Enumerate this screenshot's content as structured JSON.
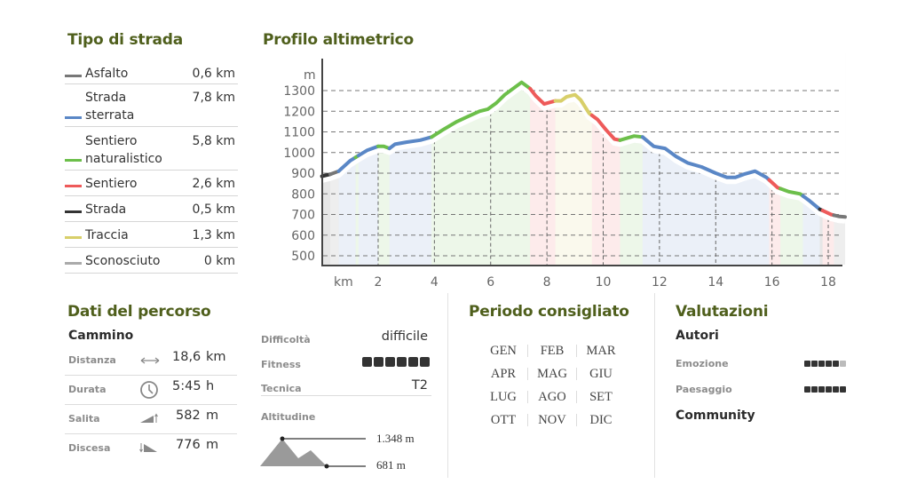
{
  "road_types": {
    "title": "Tipo di strada",
    "items": [
      {
        "label_line1": "Asfalto",
        "label_line2": "",
        "value": "0,6 km",
        "color": "#777777"
      },
      {
        "label_line1": "Strada",
        "label_line2": "sterrata",
        "value": "7,8 km",
        "color": "#5a87c6"
      },
      {
        "label_line1": "Sentiero",
        "label_line2": "naturalistico",
        "value": "5,8 km",
        "color": "#6cbf4a"
      },
      {
        "label_line1": "Sentiero",
        "label_line2": "",
        "value": "2,6 km",
        "color": "#ee5a5a"
      },
      {
        "label_line1": "Strada",
        "label_line2": "",
        "value": "0,5 km",
        "color": "#333333"
      },
      {
        "label_line1": "Traccia",
        "label_line2": "",
        "value": "1,3 km",
        "color": "#d8cf6a"
      },
      {
        "label_line1": "Sconosciuto",
        "label_line2": "",
        "value": "0 km",
        "color": "#aaaaaa"
      }
    ]
  },
  "profile": {
    "title": "Profilo altimetrico"
  },
  "chart_data": {
    "type": "area",
    "title": "Profilo altimetrico",
    "xlabel": "km",
    "ylabel": "m",
    "x_ticks": [
      2,
      4,
      6,
      8,
      10,
      12,
      14,
      16,
      18
    ],
    "y_ticks": [
      500,
      600,
      700,
      800,
      900,
      1000,
      1100,
      1200,
      1300
    ],
    "xlim": [
      0,
      18.6
    ],
    "ylim": [
      450,
      1400
    ],
    "grid": true,
    "legend_position": "left (Tipo di strada)",
    "x": [
      0.0,
      0.3,
      0.6,
      1.0,
      1.3,
      1.6,
      2.0,
      2.2,
      2.4,
      2.6,
      3.0,
      3.5,
      3.9,
      4.3,
      4.8,
      5.2,
      5.6,
      5.9,
      6.2,
      6.5,
      6.8,
      7.1,
      7.4,
      7.6,
      7.9,
      8.3,
      8.5,
      8.7,
      9.0,
      9.2,
      9.5,
      9.8,
      10.1,
      10.4,
      10.6,
      11.1,
      11.4,
      11.8,
      12.2,
      12.6,
      13.0,
      13.5,
      14.0,
      14.4,
      14.7,
      15.0,
      15.4,
      15.8,
      16.2,
      16.6,
      17.0,
      17.3,
      17.7,
      18.1,
      18.4,
      18.6
    ],
    "y": [
      885,
      895,
      910,
      960,
      985,
      1010,
      1030,
      1030,
      1020,
      1040,
      1050,
      1060,
      1075,
      1110,
      1150,
      1175,
      1200,
      1210,
      1240,
      1280,
      1310,
      1340,
      1310,
      1275,
      1235,
      1250,
      1250,
      1270,
      1280,
      1255,
      1190,
      1160,
      1110,
      1065,
      1060,
      1080,
      1075,
      1030,
      1020,
      980,
      950,
      930,
      900,
      880,
      880,
      895,
      910,
      880,
      830,
      810,
      800,
      770,
      725,
      700,
      690,
      688
    ],
    "segments": [
      {
        "type": "Strada",
        "from_km": 0.0,
        "to_km": 0.3,
        "color": "#333333"
      },
      {
        "type": "Asfalto",
        "from_km": 0.3,
        "to_km": 0.6,
        "color": "#777777"
      },
      {
        "type": "Strada sterrata",
        "from_km": 0.6,
        "to_km": 1.2,
        "color": "#5a87c6"
      },
      {
        "type": "Sentiero naturalistico",
        "from_km": 1.2,
        "to_km": 1.3,
        "color": "#6cbf4a"
      },
      {
        "type": "Strada sterrata",
        "from_km": 1.3,
        "to_km": 2.0,
        "color": "#5a87c6"
      },
      {
        "type": "Sentiero naturalistico",
        "from_km": 2.0,
        "to_km": 2.4,
        "color": "#6cbf4a"
      },
      {
        "type": "Strada sterrata",
        "from_km": 2.4,
        "to_km": 3.9,
        "color": "#5a87c6"
      },
      {
        "type": "Sentiero naturalistico",
        "from_km": 3.9,
        "to_km": 7.4,
        "color": "#6cbf4a"
      },
      {
        "type": "Sentiero",
        "from_km": 7.4,
        "to_km": 8.3,
        "color": "#ee5a5a"
      },
      {
        "type": "Traccia",
        "from_km": 8.3,
        "to_km": 9.6,
        "color": "#d8cf6a"
      },
      {
        "type": "Sentiero",
        "from_km": 9.6,
        "to_km": 10.6,
        "color": "#ee5a5a"
      },
      {
        "type": "Sentiero naturalistico",
        "from_km": 10.6,
        "to_km": 11.4,
        "color": "#6cbf4a"
      },
      {
        "type": "Strada sterrata",
        "from_km": 11.4,
        "to_km": 15.9,
        "color": "#5a87c6"
      },
      {
        "type": "Sentiero",
        "from_km": 15.9,
        "to_km": 16.3,
        "color": "#ee5a5a"
      },
      {
        "type": "Sentiero naturalistico",
        "from_km": 16.3,
        "to_km": 17.1,
        "color": "#6cbf4a"
      },
      {
        "type": "Strada sterrata",
        "from_km": 17.1,
        "to_km": 17.7,
        "color": "#5a87c6"
      },
      {
        "type": "Strada",
        "from_km": 17.7,
        "to_km": 17.8,
        "color": "#333333"
      },
      {
        "type": "Sentiero",
        "from_km": 17.8,
        "to_km": 18.2,
        "color": "#ee5a5a"
      },
      {
        "type": "Asfalto",
        "from_km": 18.2,
        "to_km": 18.6,
        "color": "#777777"
      }
    ]
  },
  "route_data": {
    "title": "Dati del percorso",
    "subtitle": "Cammino",
    "rows": [
      {
        "label": "Distanza",
        "icon": "arrows-horizontal-icon",
        "value": "18,6",
        "unit": "km"
      },
      {
        "label": "Durata",
        "icon": "clock-icon",
        "value": "5:45",
        "unit": "h"
      },
      {
        "label": "Salita",
        "icon": "ascent-icon",
        "value": "582",
        "unit": "m"
      },
      {
        "label": "Discesa",
        "icon": "descent-icon",
        "value": "776",
        "unit": "m"
      }
    ]
  },
  "difficulty": {
    "rows": [
      {
        "label": "Difficoltà",
        "value": "difficile"
      },
      {
        "label": "Fitness",
        "dots_filled": 6,
        "dots_total": 6
      },
      {
        "label": "Tecnica",
        "value": "T2"
      }
    ],
    "altitude_label": "Altitudine",
    "max_altitude": "1.348 m",
    "min_altitude": "681 m"
  },
  "season": {
    "title": "Periodo consigliato",
    "months": [
      [
        "GEN",
        "FEB",
        "MAR"
      ],
      [
        "APR",
        "MAG",
        "GIU"
      ],
      [
        "LUG",
        "AGO",
        "SET"
      ],
      [
        "OTT",
        "NOV",
        "DIC"
      ]
    ]
  },
  "ratings": {
    "title": "Valutazioni",
    "authors_label": "Autori",
    "items": [
      {
        "label": "Emozione",
        "filled": 5,
        "total": 6
      },
      {
        "label": "Paesaggio",
        "filled": 6,
        "total": 6
      }
    ],
    "community_label": "Community"
  }
}
